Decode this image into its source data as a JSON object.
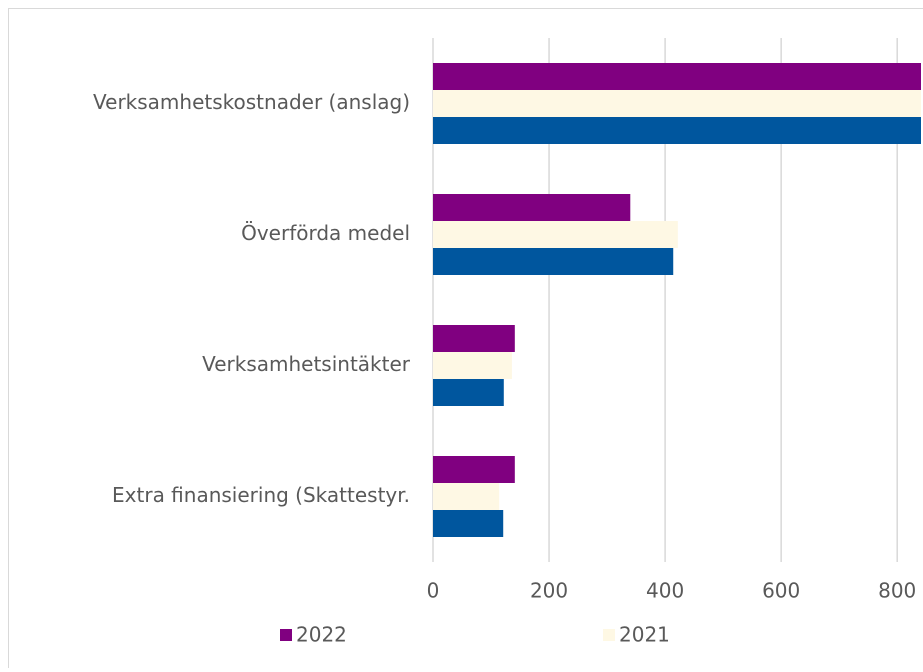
{
  "chart_data": {
    "type": "barh",
    "categories": [
      "Verksamhetskostnader (anslag)",
      "Överförda medel",
      "Verksamhetsintäkter",
      "Extra finansiering (Skattestyr."
    ],
    "series": [
      {
        "name": "2022",
        "color": "#800080",
        "values": [
          900,
          340,
          141,
          141
        ]
      },
      {
        "name": "2021",
        "color": "#fef8e4",
        "values": [
          900,
          422,
          136,
          114
        ]
      },
      {
        "color": "#00569e",
        "values": [
          900,
          414,
          122,
          121
        ]
      }
    ],
    "xlim": [
      0,
      841
    ],
    "xticks": [
      0,
      200,
      400,
      600,
      800
    ],
    "grid": true,
    "legend": "bottom"
  }
}
